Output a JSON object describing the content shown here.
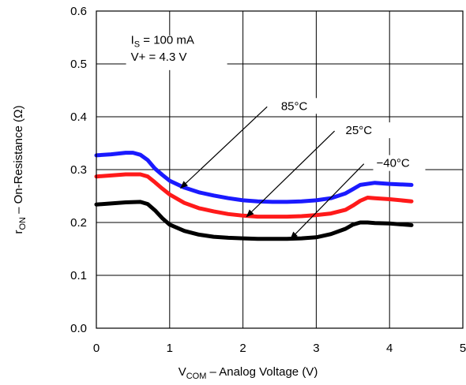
{
  "chart_data": {
    "type": "line",
    "title": "",
    "xlabel": "V",
    "xlabel_sub": "COM",
    "xlabel_rest": " – Analog Voltage (V)",
    "ylabel": "r",
    "ylabel_sub": "ON",
    "ylabel_rest": " –   On-Resistance (Ω)",
    "xlim": [
      0,
      5
    ],
    "ylim": [
      0,
      0.6
    ],
    "xticks": [
      "0",
      "1",
      "2",
      "3",
      "4",
      "5"
    ],
    "yticks": [
      "0.0",
      "0.1",
      "0.2",
      "0.3",
      "0.4",
      "0.5",
      "0.6"
    ],
    "grid": true,
    "conditions": {
      "is_prefix": "I",
      "is_sub": "S",
      "is_rest": " = 100 mA",
      "vplus": "V+ = 4.3 V"
    },
    "series": [
      {
        "name": "85°C",
        "color": "#1a1aff",
        "x": [
          0,
          0.2,
          0.4,
          0.5,
          0.6,
          0.7,
          0.8,
          0.9,
          1.0,
          1.2,
          1.4,
          1.6,
          1.8,
          2.0,
          2.2,
          2.4,
          2.6,
          2.8,
          3.0,
          3.2,
          3.4,
          3.5,
          3.6,
          3.8,
          4.0,
          4.3
        ],
        "y": [
          0.327,
          0.329,
          0.332,
          0.332,
          0.328,
          0.318,
          0.302,
          0.29,
          0.279,
          0.266,
          0.257,
          0.251,
          0.246,
          0.242,
          0.24,
          0.239,
          0.239,
          0.24,
          0.242,
          0.246,
          0.255,
          0.263,
          0.271,
          0.275,
          0.273,
          0.271
        ]
      },
      {
        "name": "25°C",
        "color": "#ff1a1a",
        "x": [
          0,
          0.2,
          0.4,
          0.6,
          0.7,
          0.8,
          0.9,
          1.0,
          1.2,
          1.4,
          1.6,
          1.8,
          2.0,
          2.2,
          2.4,
          2.6,
          2.8,
          3.0,
          3.2,
          3.4,
          3.5,
          3.6,
          3.7,
          3.8,
          4.0,
          4.3
        ],
        "y": [
          0.287,
          0.289,
          0.291,
          0.291,
          0.287,
          0.276,
          0.264,
          0.253,
          0.237,
          0.227,
          0.221,
          0.216,
          0.213,
          0.211,
          0.211,
          0.211,
          0.212,
          0.214,
          0.217,
          0.224,
          0.232,
          0.241,
          0.247,
          0.246,
          0.244,
          0.24
        ]
      },
      {
        "name": "−40°C",
        "color": "#000000",
        "x": [
          0,
          0.2,
          0.4,
          0.6,
          0.7,
          0.8,
          0.9,
          1.0,
          1.2,
          1.4,
          1.6,
          1.8,
          2.0,
          2.2,
          2.4,
          2.6,
          2.8,
          3.0,
          3.2,
          3.4,
          3.5,
          3.6,
          3.7,
          3.8,
          4.0,
          4.3
        ],
        "y": [
          0.234,
          0.236,
          0.238,
          0.239,
          0.235,
          0.223,
          0.208,
          0.196,
          0.184,
          0.177,
          0.173,
          0.171,
          0.17,
          0.169,
          0.169,
          0.169,
          0.17,
          0.172,
          0.178,
          0.188,
          0.196,
          0.2,
          0.2,
          0.199,
          0.198,
          0.195
        ]
      }
    ],
    "annotations": [
      {
        "label": "85°C",
        "text_at": [
          2.52,
          0.413
        ],
        "arrow_from": [
          2.33,
          0.413
        ],
        "arrow_to": [
          1.15,
          0.265
        ]
      },
      {
        "label": "25°C",
        "text_at": [
          3.4,
          0.367
        ],
        "arrow_from": [
          3.25,
          0.367
        ],
        "arrow_to": [
          2.05,
          0.211
        ]
      },
      {
        "label": "−40°C",
        "text_at": [
          3.82,
          0.305
        ],
        "arrow_from": [
          3.65,
          0.305
        ],
        "arrow_to": [
          2.65,
          0.169
        ]
      }
    ]
  }
}
